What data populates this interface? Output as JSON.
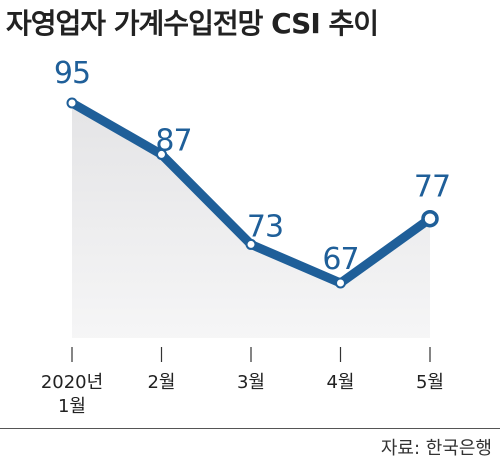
{
  "title": "자영업자 가계수입전망 CSI 추이",
  "source": "자료: 한국은행",
  "colors": {
    "line": "#1f5f99",
    "area_fill": "#e4e4e6",
    "label": "#1f5f99",
    "tick_label": "#222222"
  },
  "chart_data": {
    "type": "line",
    "title": "자영업자 가계수입전망 CSI 추이",
    "categories": [
      "2020년\n1월",
      "2월",
      "3월",
      "4월",
      "5월"
    ],
    "series": [
      {
        "values": [
          95,
          87,
          73,
          67,
          77
        ]
      }
    ],
    "data_labels": [
      "95",
      "87",
      "73",
      "67",
      "77"
    ],
    "area_fill": true,
    "grid": false,
    "last_point_highlighted": true
  }
}
